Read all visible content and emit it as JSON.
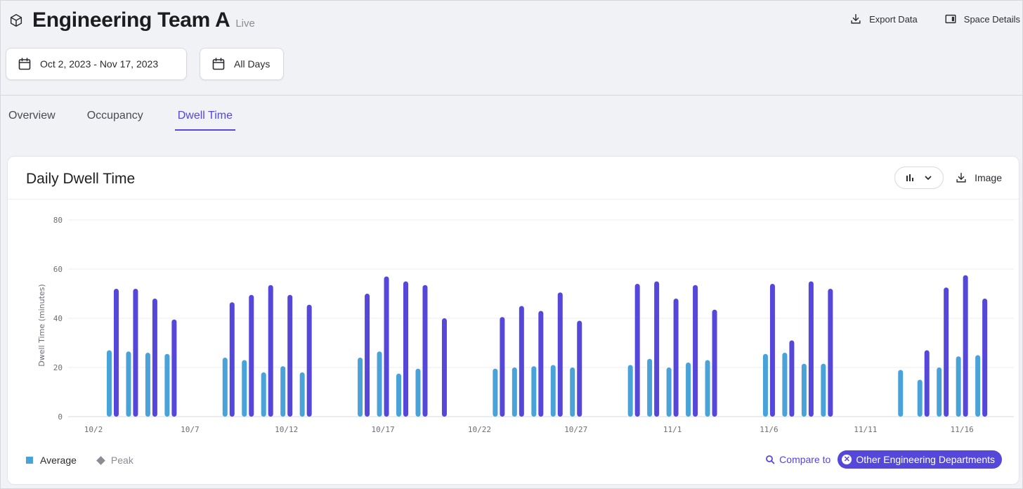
{
  "header": {
    "title": "Engineering Team A",
    "status": "Live",
    "export_label": "Export Data",
    "details_label": "Space Details"
  },
  "filters": {
    "date_range": "Oct 2, 2023 - Nov 17, 2023",
    "days": "All Days"
  },
  "tabs": [
    {
      "label": "Overview",
      "active": false
    },
    {
      "label": "Occupancy",
      "active": false
    },
    {
      "label": "Dwell Time",
      "active": true
    }
  ],
  "card": {
    "title": "Daily Dwell Time",
    "image_label": "Image"
  },
  "legend": {
    "average": "Average",
    "peak": "Peak"
  },
  "compare": {
    "label": "Compare to",
    "chip": "Other Engineering Departments"
  },
  "colors": {
    "accent": "#5447d9",
    "average": "#4aa3d8",
    "peak": "#5447d9"
  },
  "icons": [
    "cube-icon",
    "download-icon",
    "panel-icon",
    "calendar-icon",
    "bar-chart-icon",
    "chevron-down-icon",
    "search-icon",
    "close-circle-icon"
  ],
  "chart_data": {
    "type": "bar",
    "ylabel": "Dwell Time (minutes)",
    "ylim": [
      0,
      80
    ],
    "yticks": [
      0,
      20,
      40,
      60,
      80
    ],
    "xtick_labels": [
      "10/2",
      "10/7",
      "10/12",
      "10/17",
      "10/22",
      "10/27",
      "11/1",
      "11/6",
      "11/11",
      "11/16"
    ],
    "start_date": "2023-10-02",
    "days": 47,
    "grid": true,
    "series": [
      {
        "name": "Average",
        "color": "#4aa3d8",
        "points": [
          {
            "date": "10/3",
            "value": 27
          },
          {
            "date": "10/4",
            "value": 26.5
          },
          {
            "date": "10/5",
            "value": 26
          },
          {
            "date": "10/6",
            "value": 25.5
          },
          {
            "date": "10/9",
            "value": 24
          },
          {
            "date": "10/10",
            "value": 23
          },
          {
            "date": "10/11",
            "value": 18
          },
          {
            "date": "10/12",
            "value": 20.5
          },
          {
            "date": "10/13",
            "value": 18
          },
          {
            "date": "10/16",
            "value": 24
          },
          {
            "date": "10/17",
            "value": 26.5
          },
          {
            "date": "10/18",
            "value": 17.5
          },
          {
            "date": "10/19",
            "value": 19.5
          },
          {
            "date": "10/23",
            "value": 19.5
          },
          {
            "date": "10/24",
            "value": 20
          },
          {
            "date": "10/25",
            "value": 20.5
          },
          {
            "date": "10/26",
            "value": 21
          },
          {
            "date": "10/27",
            "value": 20
          },
          {
            "date": "10/30",
            "value": 21
          },
          {
            "date": "10/31",
            "value": 23.5
          },
          {
            "date": "11/1",
            "value": 20
          },
          {
            "date": "11/2",
            "value": 22
          },
          {
            "date": "11/3",
            "value": 23
          },
          {
            "date": "11/6",
            "value": 25.5
          },
          {
            "date": "11/7",
            "value": 26
          },
          {
            "date": "11/8",
            "value": 21.5
          },
          {
            "date": "11/9",
            "value": 21.5
          },
          {
            "date": "11/13",
            "value": 19
          },
          {
            "date": "11/14",
            "value": 15
          },
          {
            "date": "11/15",
            "value": 20
          },
          {
            "date": "11/16",
            "value": 24.5
          },
          {
            "date": "11/17",
            "value": 25
          }
        ]
      },
      {
        "name": "Peak",
        "color": "#5447d9",
        "points": [
          {
            "date": "10/3",
            "value": 52
          },
          {
            "date": "10/4",
            "value": 52
          },
          {
            "date": "10/5",
            "value": 48
          },
          {
            "date": "10/6",
            "value": 39.5
          },
          {
            "date": "10/9",
            "value": 46.5
          },
          {
            "date": "10/10",
            "value": 49.5
          },
          {
            "date": "10/11",
            "value": 53.5
          },
          {
            "date": "10/12",
            "value": 49.5
          },
          {
            "date": "10/13",
            "value": 45.5
          },
          {
            "date": "10/16",
            "value": 50
          },
          {
            "date": "10/17",
            "value": 57
          },
          {
            "date": "10/18",
            "value": 55
          },
          {
            "date": "10/19",
            "value": 53.5
          },
          {
            "date": "10/20",
            "value": 40
          },
          {
            "date": "10/23",
            "value": 40.5
          },
          {
            "date": "10/24",
            "value": 45
          },
          {
            "date": "10/25",
            "value": 43
          },
          {
            "date": "10/26",
            "value": 50.5
          },
          {
            "date": "10/27",
            "value": 39
          },
          {
            "date": "10/30",
            "value": 54
          },
          {
            "date": "10/31",
            "value": 55
          },
          {
            "date": "11/1",
            "value": 48
          },
          {
            "date": "11/2",
            "value": 53.5
          },
          {
            "date": "11/3",
            "value": 43.5
          },
          {
            "date": "11/6",
            "value": 54
          },
          {
            "date": "11/7",
            "value": 31
          },
          {
            "date": "11/8",
            "value": 55
          },
          {
            "date": "11/9",
            "value": 52
          },
          {
            "date": "11/14",
            "value": 27
          },
          {
            "date": "11/15",
            "value": 52.5
          },
          {
            "date": "11/16",
            "value": 57.5
          },
          {
            "date": "11/17",
            "value": 48
          }
        ]
      }
    ]
  }
}
